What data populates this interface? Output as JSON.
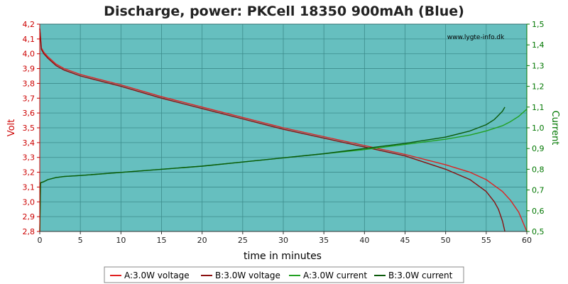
{
  "chart_data": {
    "type": "line",
    "title": "Discharge, power: PKCell 18350 900mAh (Blue)",
    "xlabel": "time in minutes",
    "ylabel_left": "Volt",
    "ylabel_right": "Current",
    "watermark": "www.lygte-info.dk",
    "xlim": [
      0,
      60
    ],
    "ylim_left": [
      2.8,
      4.2
    ],
    "ylim_right": [
      0.5,
      1.5
    ],
    "x_ticks": [
      0,
      5,
      10,
      15,
      20,
      25,
      30,
      35,
      40,
      45,
      50,
      55,
      60
    ],
    "y_left_ticks": [
      "2,8",
      "2,9",
      "3,0",
      "3,1",
      "3,2",
      "3,3",
      "3,4",
      "3,5",
      "3,6",
      "3,7",
      "3,8",
      "3,9",
      "4,0",
      "4,1",
      "4,2"
    ],
    "y_right_ticks": [
      "0,5",
      "0,6",
      "0,7",
      "0,8",
      "0,9",
      "1,0",
      "1,1",
      "1,2",
      "1,3",
      "1,4",
      "1,5"
    ],
    "grid": true,
    "legend_position": "bottom",
    "colors": {
      "plot_bg": "#66bfbf",
      "voltage_a": "#e02020",
      "voltage_b": "#8a0f0f",
      "current_a": "#22a022",
      "current_b": "#0a5a0a",
      "left_axis": "#cc0000",
      "right_axis": "#007700",
      "grid": "#3c8c8c"
    },
    "series": [
      {
        "name": "A:3.0W voltage",
        "axis": "left",
        "x": [
          0,
          0.2,
          0.5,
          1,
          2,
          3,
          5,
          10,
          15,
          20,
          25,
          30,
          35,
          40,
          45,
          50,
          53,
          55,
          57,
          58,
          59,
          60
        ],
        "values": [
          4.17,
          4.04,
          4.01,
          3.98,
          3.93,
          3.9,
          3.86,
          3.79,
          3.71,
          3.64,
          3.57,
          3.5,
          3.44,
          3.38,
          3.32,
          3.25,
          3.2,
          3.15,
          3.07,
          3.01,
          2.93,
          2.8
        ]
      },
      {
        "name": "B:3.0W voltage",
        "axis": "left",
        "x": [
          0,
          0.2,
          0.5,
          1,
          2,
          3,
          5,
          10,
          15,
          20,
          25,
          30,
          35,
          40,
          45,
          50,
          53,
          55,
          56,
          56.5,
          57,
          57.3
        ],
        "values": [
          4.17,
          4.03,
          4.0,
          3.97,
          3.92,
          3.89,
          3.85,
          3.78,
          3.7,
          3.63,
          3.56,
          3.49,
          3.43,
          3.37,
          3.31,
          3.22,
          3.15,
          3.07,
          3.0,
          2.95,
          2.87,
          2.8
        ]
      },
      {
        "name": "A:3.0W current",
        "axis": "right",
        "x": [
          0,
          0.1,
          0.5,
          1,
          2,
          3,
          5,
          10,
          15,
          20,
          25,
          30,
          35,
          40,
          45,
          50,
          53,
          55,
          57,
          58,
          59,
          60
        ],
        "values": [
          0.5,
          0.735,
          0.74,
          0.75,
          0.76,
          0.765,
          0.77,
          0.785,
          0.8,
          0.815,
          0.835,
          0.855,
          0.875,
          0.895,
          0.92,
          0.945,
          0.965,
          0.985,
          1.01,
          1.03,
          1.055,
          1.09
        ]
      },
      {
        "name": "B:3.0W current",
        "axis": "right",
        "x": [
          0,
          0.1,
          0.5,
          1,
          2,
          3,
          5,
          10,
          15,
          20,
          25,
          30,
          35,
          40,
          45,
          50,
          53,
          55,
          56,
          56.5,
          57,
          57.3
        ],
        "values": [
          0.5,
          0.735,
          0.74,
          0.75,
          0.76,
          0.765,
          0.77,
          0.785,
          0.8,
          0.815,
          0.835,
          0.855,
          0.875,
          0.9,
          0.925,
          0.955,
          0.985,
          1.015,
          1.04,
          1.06,
          1.08,
          1.1
        ]
      }
    ]
  }
}
